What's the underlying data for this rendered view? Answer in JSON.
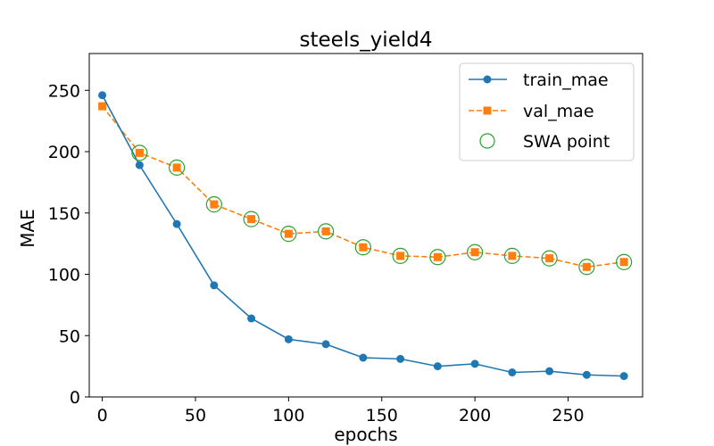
{
  "chart_data": {
    "type": "line",
    "title": "steels_yield4",
    "xlabel": "epochs",
    "ylabel": "MAE",
    "xlim": [
      -7,
      290
    ],
    "ylim": [
      0,
      280
    ],
    "xticks": [
      0,
      50,
      100,
      150,
      200,
      250
    ],
    "yticks": [
      0,
      50,
      100,
      150,
      200,
      250
    ],
    "grid": false,
    "legend_position": "top-right",
    "series": [
      {
        "name": "train_mae",
        "style": "solid-line-circle-markers",
        "color": "#1f77b4",
        "x": [
          0,
          20,
          40,
          60,
          80,
          100,
          120,
          140,
          160,
          180,
          200,
          220,
          240,
          260,
          280
        ],
        "values": [
          246,
          189,
          141,
          91,
          64,
          47,
          43,
          32,
          31,
          25,
          27,
          20,
          21,
          18,
          17
        ]
      },
      {
        "name": "val_mae",
        "style": "dashed-line-square-markers",
        "color": "#ff7f0e",
        "x": [
          0,
          20,
          40,
          60,
          80,
          100,
          120,
          140,
          160,
          180,
          200,
          220,
          240,
          260,
          280
        ],
        "values": [
          237,
          199,
          187,
          157,
          145,
          133,
          135,
          122,
          115,
          114,
          118,
          115,
          113,
          106,
          110
        ]
      },
      {
        "name": "SWA point",
        "style": "hollow-circle-markers",
        "color": "#2ca02c",
        "x": [
          20,
          40,
          60,
          80,
          100,
          120,
          140,
          160,
          180,
          200,
          220,
          240,
          260,
          280
        ],
        "values": [
          199,
          187,
          157,
          145,
          133,
          135,
          122,
          115,
          114,
          118,
          115,
          113,
          106,
          110
        ]
      }
    ]
  }
}
